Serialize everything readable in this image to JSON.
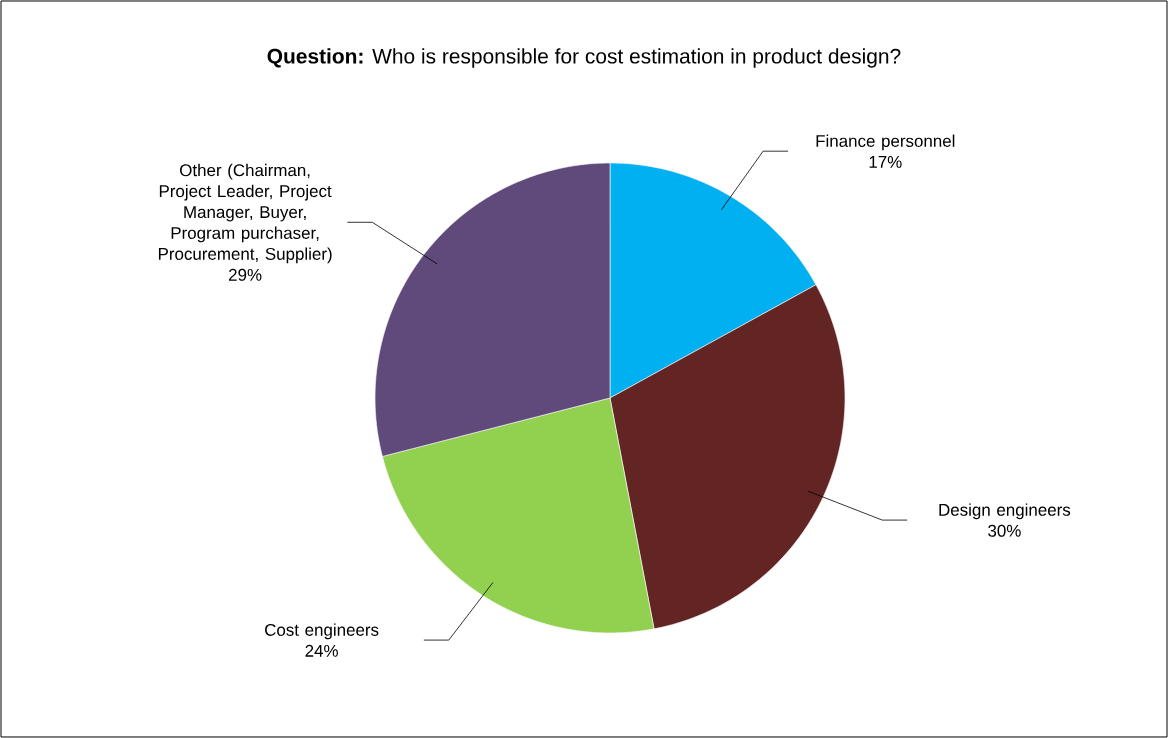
{
  "chart_data": {
    "type": "pie",
    "title": "**Question:** Who is responsible for cost estimation in product design?",
    "categories": [
      "Finance personnel",
      "Design engineers",
      "Cost engineers",
      "Other  (Chairman, Project Leader, Project Manager, Buyer, Program purchaser, Procurement, Supplier)"
    ],
    "values": [
      17,
      30,
      24,
      29
    ],
    "value_labels": [
      "17%",
      "30%",
      "24%",
      "29%"
    ],
    "colors": [
      "#00b0f0",
      "#632523",
      "#92d050",
      "#604a7b"
    ],
    "legend": false
  }
}
